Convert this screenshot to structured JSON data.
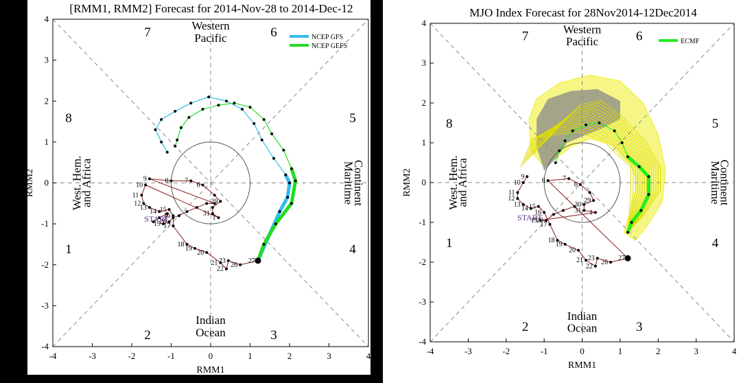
{
  "colors": {
    "obs": "#8b1a1a",
    "obs_early": "#5a2f8a",
    "ncep_gfs": "#33bbee",
    "ncep_gefs": "#22dd22",
    "ecmf": "#22ee22",
    "plume_yellow": "#eeee22",
    "plume_gray": "#888888",
    "ellipse": "#555555",
    "dashed": "#888888"
  },
  "chart_data": [
    {
      "type": "scatter",
      "title": "[RMM1, RMM2] Forecast for 2014-Nov-28 to 2014-Dec-12",
      "xlabel": "RMM1",
      "ylabel": "RMM2",
      "xlim": [
        -4,
        4
      ],
      "ylim": [
        -4,
        4
      ],
      "xticks": [
        "-4",
        "-3",
        "-2",
        "-1",
        "0",
        "1",
        "2",
        "3",
        "4"
      ],
      "yticks": [
        "-4",
        "-3",
        "-2",
        "-1",
        "0",
        "1",
        "2",
        "3",
        "4"
      ],
      "grid": false,
      "legend_placement": "top-right",
      "phases": [
        {
          "label": "1",
          "x": -3.6,
          "y": -1.6
        },
        {
          "label": "2",
          "x": -1.6,
          "y": -3.7
        },
        {
          "label": "3",
          "x": 1.6,
          "y": -3.7
        },
        {
          "label": "4",
          "x": 3.6,
          "y": -1.6
        },
        {
          "label": "5",
          "x": 3.6,
          "y": 1.6
        },
        {
          "label": "6",
          "x": 1.6,
          "y": 3.7
        },
        {
          "label": "7",
          "x": -1.6,
          "y": 3.7
        },
        {
          "label": "8",
          "x": -3.6,
          "y": 1.6
        }
      ],
      "regions": {
        "top": [
          "Western",
          "Pacific"
        ],
        "bottom": [
          "Indian",
          "Ocean"
        ],
        "left": [
          "West. Hem.",
          "and Africa"
        ],
        "right": [
          "Maritime",
          "Continent"
        ]
      },
      "start_label": "START",
      "observed": [
        {
          "d": "",
          "x": -1.45,
          "y": -0.95
        },
        {
          "d": "",
          "x": -1.3,
          "y": -0.85
        },
        {
          "d": "",
          "x": -1.1,
          "y": -0.75
        },
        {
          "d": "19",
          "x": -1.2,
          "y": -1.0
        },
        {
          "d": "20",
          "x": -1.05,
          "y": -0.95
        },
        {
          "d": "",
          "x": -0.95,
          "y": -0.85
        },
        {
          "d": "",
          "x": -0.8,
          "y": -0.8
        },
        {
          "d": "",
          "x": -0.6,
          "y": -0.7
        },
        {
          "d": "",
          "x": -0.35,
          "y": -0.6
        },
        {
          "d": "",
          "x": -0.1,
          "y": -0.5
        },
        {
          "d": "",
          "x": 0.1,
          "y": -0.5
        },
        {
          "d": "9",
          "x": -1.55,
          "y": 0.1
        },
        {
          "d": "8",
          "x": -1.0,
          "y": 0.05
        },
        {
          "d": "7",
          "x": -0.5,
          "y": 0.05
        },
        {
          "d": "6",
          "x": -0.2,
          "y": -0.05
        },
        {
          "d": "",
          "x": 0.1,
          "y": -0.3
        },
        {
          "d": "29",
          "x": 0.25,
          "y": -0.45
        },
        {
          "d": "",
          "x": 0.05,
          "y": -0.6
        },
        {
          "d": "31",
          "x": 0.05,
          "y": -0.75
        },
        {
          "d": "1",
          "x": 0.2,
          "y": -0.85
        },
        {
          "d": "10",
          "x": -1.65,
          "y": -0.05
        },
        {
          "d": "11",
          "x": -1.75,
          "y": -0.3
        },
        {
          "d": "12",
          "x": -1.7,
          "y": -0.5
        },
        {
          "d": "13",
          "x": -1.55,
          "y": -0.6
        },
        {
          "d": "14",
          "x": -1.3,
          "y": -0.7
        },
        {
          "d": "15",
          "x": -1.05,
          "y": -0.65
        },
        {
          "d": "16",
          "x": -0.95,
          "y": -0.8
        },
        {
          "d": "17",
          "x": -0.95,
          "y": -1.05
        },
        {
          "d": "18",
          "x": -0.6,
          "y": -1.5
        },
        {
          "d": "19",
          "x": -0.4,
          "y": -1.6
        },
        {
          "d": "20",
          "x": -0.1,
          "y": -1.7
        },
        {
          "d": "21",
          "x": 0.25,
          "y": -1.95
        },
        {
          "d": "22",
          "x": 0.4,
          "y": -2.1
        },
        {
          "d": "23",
          "x": 0.45,
          "y": -1.9
        },
        {
          "d": "26",
          "x": 0.75,
          "y": -2.0
        },
        {
          "d": "27",
          "x": 1.2,
          "y": -1.9
        }
      ],
      "series": [
        {
          "name": "NCEP GFS",
          "values": [
            {
              "x": 1.2,
              "y": -1.9
            },
            {
              "x": 1.45,
              "y": -1.35
            },
            {
              "x": 1.75,
              "y": -0.7
            },
            {
              "x": 1.95,
              "y": -0.35
            },
            {
              "x": 2.0,
              "y": 0.0
            },
            {
              "x": 1.9,
              "y": 0.2
            },
            {
              "x": 1.6,
              "y": 0.6
            },
            {
              "x": 1.3,
              "y": 1.05
            },
            {
              "x": 1.1,
              "y": 1.45
            },
            {
              "x": 0.8,
              "y": 1.8
            },
            {
              "x": 0.4,
              "y": 2.0
            },
            {
              "x": -0.05,
              "y": 2.1
            },
            {
              "x": -0.5,
              "y": 1.95
            },
            {
              "x": -0.9,
              "y": 1.75
            },
            {
              "x": -1.25,
              "y": 1.55
            },
            {
              "x": -1.4,
              "y": 1.3
            },
            {
              "x": -1.25,
              "y": 1.0
            },
            {
              "x": -1.1,
              "y": 0.75
            }
          ]
        },
        {
          "name": "NCEP GEFS",
          "values": [
            {
              "x": 1.2,
              "y": -1.9
            },
            {
              "x": 1.35,
              "y": -1.5
            },
            {
              "x": 1.65,
              "y": -1.0
            },
            {
              "x": 2.05,
              "y": -0.5
            },
            {
              "x": 2.15,
              "y": 0.05
            },
            {
              "x": 2.05,
              "y": 0.35
            },
            {
              "x": 1.85,
              "y": 0.8
            },
            {
              "x": 1.55,
              "y": 1.2
            },
            {
              "x": 1.35,
              "y": 1.55
            },
            {
              "x": 1.0,
              "y": 1.85
            },
            {
              "x": 0.6,
              "y": 1.95
            },
            {
              "x": 0.2,
              "y": 1.9
            },
            {
              "x": -0.2,
              "y": 1.8
            },
            {
              "x": -0.55,
              "y": 1.6
            },
            {
              "x": -0.75,
              "y": 1.35
            },
            {
              "x": -0.85,
              "y": 1.05
            },
            {
              "x": -0.9,
              "y": 0.9
            }
          ]
        }
      ]
    },
    {
      "type": "scatter",
      "title": "MJO Index Forecast for 28Nov2014-12Dec2014",
      "xlabel": "RMM1",
      "ylabel": "RMM2",
      "xlim": [
        -4,
        4
      ],
      "ylim": [
        -4,
        4
      ],
      "xticks": [
        "-4",
        "-3",
        "-2",
        "-1",
        "0",
        "1",
        "2",
        "3",
        "4"
      ],
      "yticks": [
        "-4",
        "-3",
        "-2",
        "-1",
        "0",
        "1",
        "2",
        "3",
        "4"
      ],
      "grid": false,
      "legend_placement": "top-right",
      "phases": [
        {
          "label": "1",
          "x": -3.5,
          "y": -1.5
        },
        {
          "label": "2",
          "x": -1.5,
          "y": -3.6
        },
        {
          "label": "3",
          "x": 1.5,
          "y": -3.6
        },
        {
          "label": "4",
          "x": 3.5,
          "y": -1.5
        },
        {
          "label": "5",
          "x": 3.5,
          "y": 1.5
        },
        {
          "label": "6",
          "x": 1.5,
          "y": 3.7
        },
        {
          "label": "7",
          "x": -1.5,
          "y": 3.7
        },
        {
          "label": "8",
          "x": -3.5,
          "y": 1.5
        }
      ],
      "regions": {
        "top": [
          "Western",
          "Pacific"
        ],
        "bottom": [
          "Indian",
          "Ocean"
        ],
        "left": [
          "West. Hem.",
          "and Africa"
        ],
        "right": [
          "Maritime",
          "Continent"
        ]
      },
      "start_label": "START",
      "observed": [
        {
          "d": "9",
          "x": -1.45,
          "y": 0.15
        },
        {
          "d": "10",
          "x": -1.55,
          "y": 0.0
        },
        {
          "d": "11",
          "x": -1.7,
          "y": -0.25
        },
        {
          "d": "12",
          "x": -1.7,
          "y": -0.4
        },
        {
          "d": "13",
          "x": -1.55,
          "y": -0.55
        },
        {
          "d": "14",
          "x": -1.35,
          "y": -0.65
        },
        {
          "d": "15",
          "x": -1.15,
          "y": -0.6
        },
        {
          "d": "16",
          "x": -1.0,
          "y": -0.75
        },
        {
          "d": "17",
          "x": -0.85,
          "y": -1.05
        },
        {
          "d": "18",
          "x": -0.65,
          "y": -1.45
        },
        {
          "d": "19",
          "x": -0.45,
          "y": -1.55
        },
        {
          "d": "20",
          "x": -0.1,
          "y": -1.7
        },
        {
          "d": "21",
          "x": 0.1,
          "y": -1.95
        },
        {
          "d": "22",
          "x": 0.35,
          "y": -2.1
        },
        {
          "d": "23",
          "x": 0.4,
          "y": -1.9
        },
        {
          "d": "26",
          "x": 0.75,
          "y": -2.0
        },
        {
          "d": "27",
          "x": 1.2,
          "y": -1.9
        },
        {
          "d": "8",
          "x": -0.9,
          "y": 0.05
        },
        {
          "d": "7",
          "x": -0.35,
          "y": 0.1
        },
        {
          "d": "6",
          "x": -0.05,
          "y": -0.05
        },
        {
          "d": "",
          "x": 0.2,
          "y": -0.25
        },
        {
          "d": "29",
          "x": 0.3,
          "y": -0.45
        },
        {
          "d": "30",
          "x": 0.05,
          "y": -0.55
        },
        {
          "d": "31",
          "x": 0.05,
          "y": -0.7
        },
        {
          "d": "1",
          "x": 0.35,
          "y": -0.75
        },
        {
          "d": "19",
          "x": -1.1,
          "y": -0.95
        },
        {
          "d": "20",
          "x": -0.95,
          "y": -0.95
        },
        {
          "d": "",
          "x": -0.75,
          "y": -0.8
        },
        {
          "d": "",
          "x": -0.5,
          "y": -0.7
        },
        {
          "d": "",
          "x": -0.2,
          "y": -0.6
        }
      ],
      "series": [
        {
          "name": "ECMF",
          "values": [
            {
              "x": 1.2,
              "y": -1.25
            },
            {
              "x": 1.3,
              "y": -1.0
            },
            {
              "x": 1.55,
              "y": -0.7
            },
            {
              "x": 1.75,
              "y": -0.3
            },
            {
              "x": 1.75,
              "y": 0.15
            },
            {
              "x": 1.5,
              "y": 0.4
            },
            {
              "x": 1.2,
              "y": 0.65
            },
            {
              "x": 1.05,
              "y": 1.0
            },
            {
              "x": 0.85,
              "y": 1.3
            },
            {
              "x": 0.45,
              "y": 1.5
            },
            {
              "x": 0.1,
              "y": 1.45
            },
            {
              "x": -0.25,
              "y": 1.3
            },
            {
              "x": -0.45,
              "y": 1.05
            },
            {
              "x": -0.6,
              "y": 0.8
            },
            {
              "x": -0.7,
              "y": 0.5
            }
          ]
        }
      ]
    }
  ]
}
